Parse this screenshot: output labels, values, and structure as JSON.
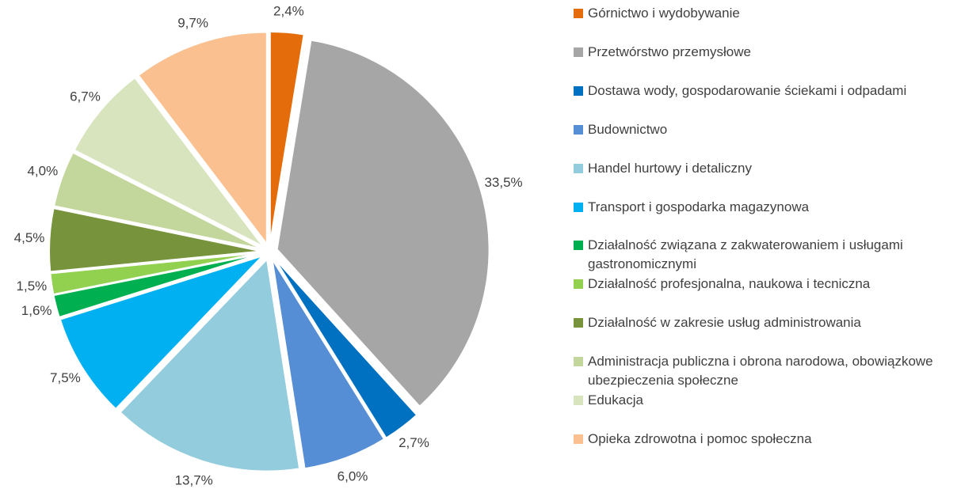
{
  "chart_data": {
    "type": "pie",
    "categories": [
      "Górnictwo i wydobywanie",
      "Przetwórstwo przemysłowe",
      "Dostawa wody, gospodarowanie ściekami i odpadami",
      "Budownictwo",
      "Handel hurtowy i detaliczny",
      "Transport i gospodarka magazynowa",
      "Działalność związana z zakwaterowaniem i usługami gastronomicznymi",
      "Działalność profesjonalna, naukowa i tecniczna",
      "Działalność w zakresie usług administrowania",
      "Administracja publiczna i obrona narodowa, obowiązkowe ubezpieczenia społeczne",
      "Edukacja",
      "Opieka zdrowotna i pomoc społeczna"
    ],
    "values": [
      2.4,
      33.5,
      2.7,
      6.0,
      13.7,
      7.5,
      1.6,
      1.5,
      4.5,
      4.0,
      6.7,
      9.7
    ],
    "value_labels": [
      "2,4%",
      "33,5%",
      "2,7%",
      "6,0%",
      "13,7%",
      "7,5%",
      "1,6%",
      "1,5%",
      "4,5%",
      "4,0%",
      "6,7%",
      "9,7%"
    ],
    "colors": [
      "#e46c0a",
      "#a6a6a6",
      "#0070c0",
      "#558ed5",
      "#93cddd",
      "#00b0f0",
      "#00b050",
      "#92d050",
      "#77933c",
      "#c3d69b",
      "#d7e4bd",
      "#fac090"
    ],
    "legend": "right"
  }
}
